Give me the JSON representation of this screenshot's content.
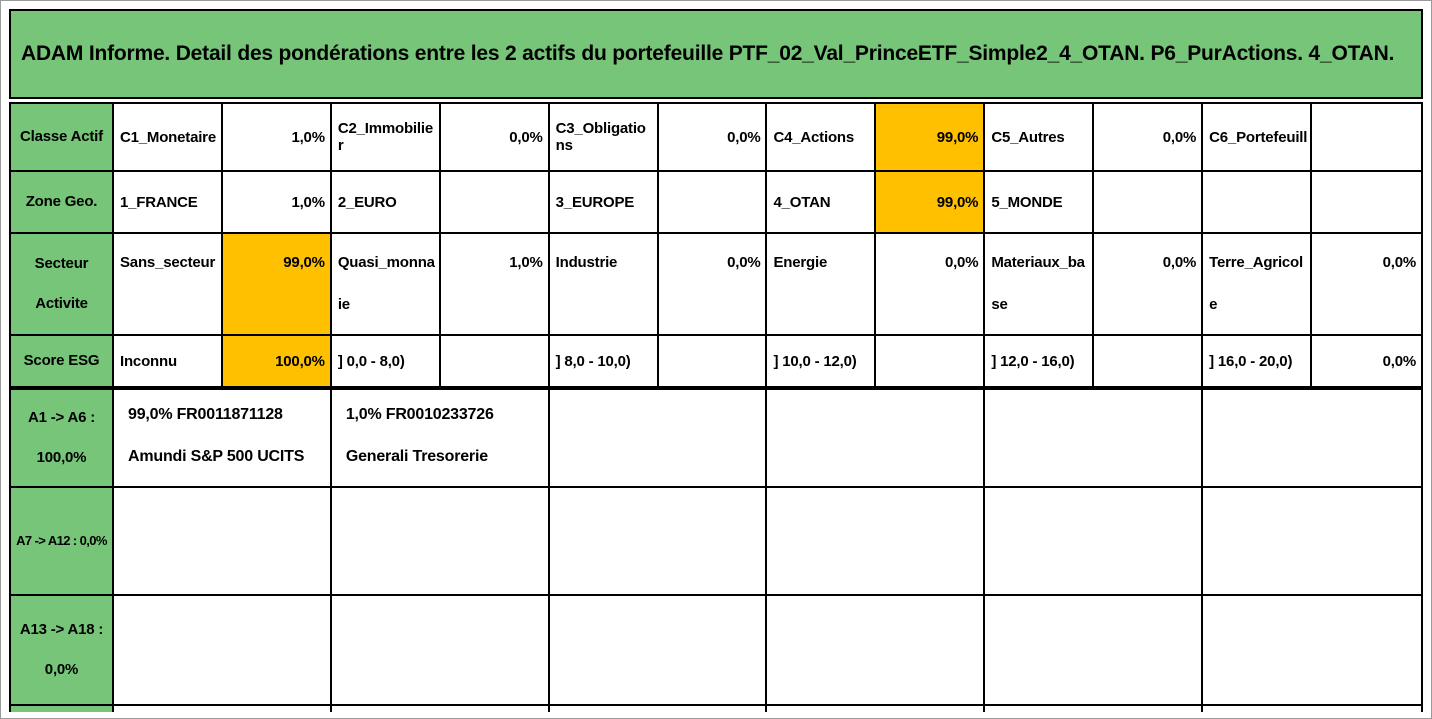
{
  "title": "ADAM Informe. Detail des pondérations entre les 2 actifs du portefeuille PTF_02_Val_PrinceETF_Simple2_4_OTAN. P6_PurActions. 4_OTAN.",
  "colors": {
    "header_green": "#76C578",
    "highlight_orange": "#FFC000"
  },
  "classification_rows": [
    {
      "label": "Classe Actif",
      "cells": [
        {
          "name": "C1_Monetaire",
          "value": "1,0%",
          "highlight": false
        },
        {
          "name": "C2_Immobilier",
          "value": "0,0%",
          "highlight": false
        },
        {
          "name": "C3_Obligations",
          "value": "0,0%",
          "highlight": false
        },
        {
          "name": "C4_Actions",
          "value": "99,0%",
          "highlight": true
        },
        {
          "name": "C5_Autres",
          "value": "0,0%",
          "highlight": false
        },
        {
          "name": "C6_Portefeuill",
          "value": "",
          "highlight": false
        }
      ]
    },
    {
      "label": "Zone Geo.",
      "cells": [
        {
          "name": "1_FRANCE",
          "value": "1,0%",
          "highlight": false
        },
        {
          "name": "2_EURO",
          "value": "",
          "highlight": false
        },
        {
          "name": "3_EUROPE",
          "value": "",
          "highlight": false
        },
        {
          "name": "4_OTAN",
          "value": "99,0%",
          "highlight": true
        },
        {
          "name": "5_MONDE",
          "value": "",
          "highlight": false
        },
        {
          "name": "",
          "value": "",
          "highlight": false
        }
      ]
    },
    {
      "label": "Secteur\nActivite",
      "cells": [
        {
          "name": "Sans_secteur",
          "value": "99,0%",
          "highlight": true
        },
        {
          "name": "Quasi_monnaie",
          "value": "1,0%",
          "highlight": false
        },
        {
          "name": "Industrie",
          "value": "0,0%",
          "highlight": false
        },
        {
          "name": "Energie",
          "value": "0,0%",
          "highlight": false
        },
        {
          "name": "Materiaux_base",
          "value": "0,0%",
          "highlight": false
        },
        {
          "name": "Terre_Agricole",
          "value": "0,0%",
          "highlight": false
        }
      ]
    },
    {
      "label": "Score ESG",
      "cells": [
        {
          "name": "Inconnu",
          "value": "100,0%",
          "highlight": true
        },
        {
          "name": "] 0,0 - 8,0)",
          "value": "",
          "highlight": false
        },
        {
          "name": "] 8,0 - 10,0)",
          "value": "",
          "highlight": false
        },
        {
          "name": "] 10,0 - 12,0)",
          "value": "",
          "highlight": false
        },
        {
          "name": "] 12,0 - 16,0)",
          "value": "",
          "highlight": false
        },
        {
          "name": "] 16,0 - 20,0)",
          "value": "0,0%",
          "highlight": false
        }
      ]
    }
  ],
  "asset_rows": [
    {
      "label": "A1 -> A6 :\n100,0%",
      "cells": [
        {
          "line1": "99,0% FR0011871128",
          "line2": "Amundi S&P 500 UCITS"
        },
        {
          "line1": "1,0% FR0010233726",
          "line2": "Generali Tresorerie"
        },
        {
          "line1": "",
          "line2": ""
        },
        {
          "line1": "",
          "line2": ""
        },
        {
          "line1": "",
          "line2": ""
        },
        {
          "line1": "",
          "line2": ""
        }
      ]
    },
    {
      "label": "A7 -> A12 : 0,0%",
      "cells": [
        {
          "line1": "",
          "line2": ""
        },
        {
          "line1": "",
          "line2": ""
        },
        {
          "line1": "",
          "line2": ""
        },
        {
          "line1": "",
          "line2": ""
        },
        {
          "line1": "",
          "line2": ""
        },
        {
          "line1": "",
          "line2": ""
        }
      ]
    },
    {
      "label": "A13 -> A18 :\n0,0%",
      "cells": [
        {
          "line1": "",
          "line2": ""
        },
        {
          "line1": "",
          "line2": ""
        },
        {
          "line1": "",
          "line2": ""
        },
        {
          "line1": "",
          "line2": ""
        },
        {
          "line1": "",
          "line2": ""
        },
        {
          "line1": "",
          "line2": ""
        }
      ]
    }
  ]
}
